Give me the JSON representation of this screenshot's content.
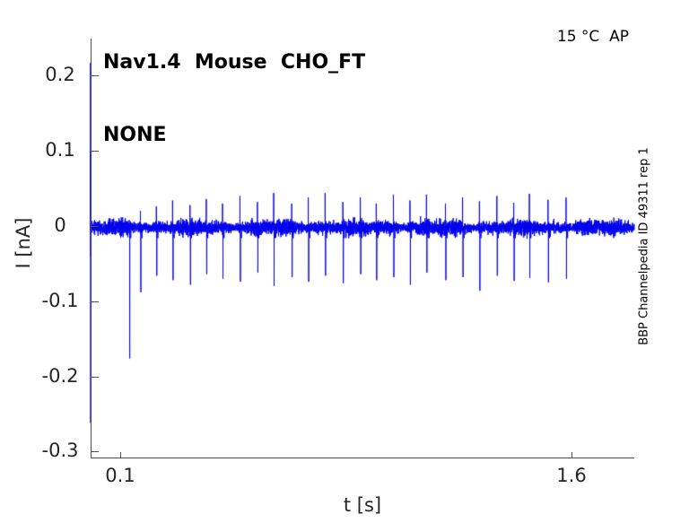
{
  "figure": {
    "title_line1": "Nav1.4  Mouse  CHO_FT",
    "title_line2": "NONE",
    "annotation": "15 °C  AP",
    "side_label": "BBP Channelpedia ID 49311 rep 1"
  },
  "chart_data": {
    "type": "line",
    "title": "Nav1.4  Mouse  CHO_FT NONE",
    "xlabel": "t [s]",
    "ylabel": "I [nA]",
    "xlim": [
      0,
      1.81
    ],
    "ylim": [
      -0.31,
      0.25
    ],
    "xticks": {
      "values": [
        0.1,
        1.6
      ],
      "labels": [
        "0.1",
        "1.6"
      ]
    },
    "yticks": {
      "values": [
        0.2,
        0.1,
        0,
        -0.1,
        -0.2,
        -0.3
      ],
      "labels": [
        "0.2",
        "0.1",
        "0",
        "-0.1",
        "-0.2",
        "-0.3"
      ]
    },
    "grid": false,
    "legend": null,
    "line_color": "#0000EE",
    "axis_color": "#4d4d4d",
    "trace": {
      "baseline_nA": 0,
      "noise_sd_nA": 0.005,
      "duration_s": 1.809,
      "initial_transient": {
        "t": 0.001,
        "peak": 0.217,
        "trough": -0.262
      },
      "spike_train_period_s": 0.0565,
      "spikes": [
        {
          "t": 0.13,
          "up": 0.008,
          "down": -0.176
        },
        {
          "t": 0.167,
          "up": 0.02,
          "down": -0.088
        },
        {
          "t": 0.22,
          "up": 0.026,
          "down": -0.066
        },
        {
          "t": 0.274,
          "up": 0.034,
          "down": -0.072
        },
        {
          "t": 0.332,
          "up": 0.028,
          "down": -0.078
        },
        {
          "t": 0.386,
          "up": 0.036,
          "down": -0.064
        },
        {
          "t": 0.44,
          "up": 0.03,
          "down": -0.07
        },
        {
          "t": 0.498,
          "up": 0.04,
          "down": -0.074
        },
        {
          "t": 0.556,
          "up": 0.032,
          "down": -0.062
        },
        {
          "t": 0.61,
          "up": 0.044,
          "down": -0.08
        },
        {
          "t": 0.67,
          "up": 0.03,
          "down": -0.068
        },
        {
          "t": 0.725,
          "up": 0.038,
          "down": -0.074
        },
        {
          "t": 0.781,
          "up": 0.044,
          "down": -0.066
        },
        {
          "t": 0.84,
          "up": 0.032,
          "down": -0.076
        },
        {
          "t": 0.898,
          "up": 0.038,
          "down": -0.064
        },
        {
          "t": 0.951,
          "up": 0.03,
          "down": -0.072
        },
        {
          "t": 1.008,
          "up": 0.042,
          "down": -0.068
        },
        {
          "t": 1.063,
          "up": 0.034,
          "down": -0.078
        },
        {
          "t": 1.118,
          "up": 0.042,
          "down": -0.062
        },
        {
          "t": 1.181,
          "up": 0.03,
          "down": -0.072
        },
        {
          "t": 1.238,
          "up": 0.038,
          "down": -0.068
        },
        {
          "t": 1.294,
          "up": 0.033,
          "down": -0.086
        },
        {
          "t": 1.352,
          "up": 0.04,
          "down": -0.066
        },
        {
          "t": 1.408,
          "up": 0.031,
          "down": -0.073
        },
        {
          "t": 1.46,
          "up": 0.043,
          "down": -0.069
        },
        {
          "t": 1.522,
          "up": 0.035,
          "down": -0.075
        },
        {
          "t": 1.582,
          "up": 0.038,
          "down": -0.07
        }
      ]
    }
  }
}
